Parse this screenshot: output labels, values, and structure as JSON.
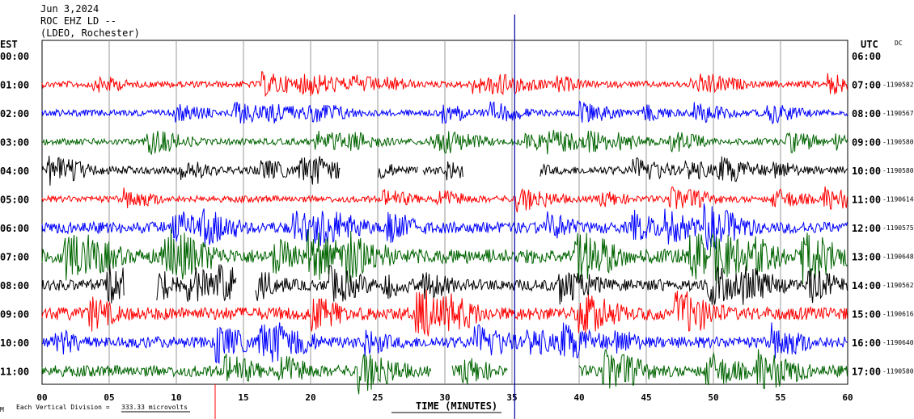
{
  "header": {
    "date": "Jun 3,2024",
    "station": "ROC EHZ LD --",
    "network": "(LDEO, Rochester)",
    "left_zone": "EST",
    "right_zone": "UTC",
    "dc_label": "DC"
  },
  "footer": {
    "scale_prefix": "Each Vertical Division =",
    "scale_value": "333.33 microvolts",
    "xlabel": "TIME (MINUTES)"
  },
  "chart_data": {
    "type": "helicorder",
    "title": "Jun 3,2024",
    "xlabel": "TIME (MINUTES)",
    "xlim": [
      0,
      60
    ],
    "x_ticks": [
      "00",
      "05",
      "10",
      "15",
      "20",
      "25",
      "30",
      "35",
      "40",
      "45",
      "50",
      "55",
      "60"
    ],
    "grid": true,
    "trace_colors": [
      "#ff0000",
      "#0000ff",
      "#006400",
      "#000000"
    ],
    "rows": [
      {
        "est": "00:00",
        "utc": "06:00",
        "dc": "",
        "amplitude": 0,
        "gaps": []
      },
      {
        "est": "01:00",
        "utc": "07:00",
        "dc": "1190582",
        "amplitude": 4,
        "gaps": []
      },
      {
        "est": "02:00",
        "utc": "08:00",
        "dc": "1190567",
        "amplitude": 4,
        "gaps": []
      },
      {
        "est": "03:00",
        "utc": "09:00",
        "dc": "1190580",
        "amplitude": 4,
        "gaps": []
      },
      {
        "est": "04:00",
        "utc": "10:00",
        "dc": "1190580",
        "amplitude": 5,
        "gaps": [
          [
            22.2,
            25.0
          ],
          [
            28.0,
            28.3
          ],
          [
            31.4,
            37.1
          ]
        ]
      },
      {
        "est": "05:00",
        "utc": "11:00",
        "dc": "1190614",
        "amplitude": 4,
        "gaps": []
      },
      {
        "est": "06:00",
        "utc": "12:00",
        "dc": "1190575",
        "amplitude": 7,
        "gaps": []
      },
      {
        "est": "07:00",
        "utc": "13:00",
        "dc": "1190648",
        "amplitude": 9,
        "gaps": []
      },
      {
        "est": "08:00",
        "utc": "14:00",
        "dc": "1190562",
        "amplitude": 7,
        "gaps": [
          [
            6.1,
            8.5
          ],
          [
            14.5,
            15.9
          ]
        ]
      },
      {
        "est": "09:00",
        "utc": "15:00",
        "dc": "1190616",
        "amplitude": 8,
        "gaps": []
      },
      {
        "est": "10:00",
        "utc": "16:00",
        "dc": "1190640",
        "amplitude": 7,
        "gaps": []
      },
      {
        "est": "11:00",
        "utc": "17:00",
        "dc": "1190580",
        "amplitude": 7,
        "gaps": [
          [
            29.0,
            30.5
          ],
          [
            34.7,
            40.0
          ]
        ]
      }
    ],
    "vertical_marker_minute": 35.2
  }
}
